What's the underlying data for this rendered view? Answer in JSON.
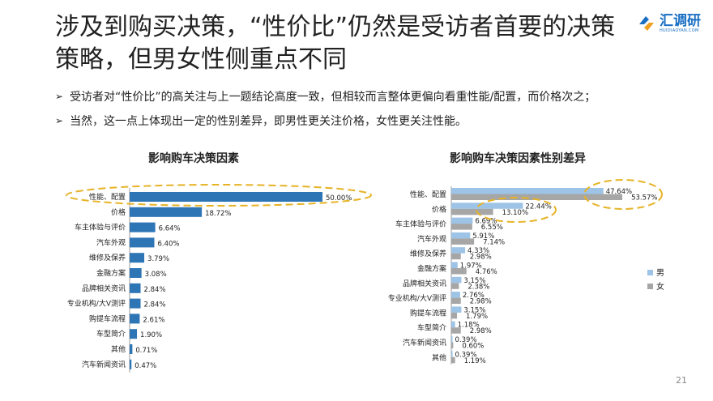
{
  "title": "涉及到购买决策，“性价比”仍然是受访者首要的决策策略，但男女性侧重点不同",
  "logo": {
    "cn": "汇调研",
    "en": "HUIDIAOYAN.COM"
  },
  "bullets": [
    "受访者对“性价比”的高关注与上一题结论高度一致，但相较而言整体更偏向看重性能/配置，而价格次之；",
    "当然，这一点上体现出一定的性别差异，即男性更关注价格，女性更关注性能。"
  ],
  "page_number": "21",
  "colors": {
    "left_bar": "#2e75b6",
    "male": "#9dc3e6",
    "female": "#a6a6a6",
    "highlight": "#e6b325"
  },
  "chart_data": [
    {
      "type": "bar",
      "orientation": "horizontal",
      "title": "影响购车决策因素",
      "categories": [
        "性能、配置",
        "价格",
        "车主体验与评价",
        "汽车外观",
        "维修及保养",
        "金融方案",
        "品牌相关资讯",
        "专业机构/大V测评",
        "购提车流程",
        "车型简介",
        "其他",
        "汽车新闻资讯"
      ],
      "values": [
        50.0,
        18.72,
        6.64,
        6.4,
        3.79,
        3.08,
        2.84,
        2.84,
        2.61,
        1.9,
        0.71,
        0.47
      ],
      "labels": [
        "50.00%",
        "18.72%",
        "6.64%",
        "6.40%",
        "3.79%",
        "3.08%",
        "2.84%",
        "2.84%",
        "2.61%",
        "1.90%",
        "0.71%",
        "0.47%"
      ],
      "highlighted": [
        "性能、配置"
      ]
    },
    {
      "type": "bar",
      "orientation": "horizontal",
      "title": "影响购车决策因素性别差异",
      "categories": [
        "性能、配置",
        "价格",
        "车主体验与评价",
        "汽车外观",
        "维修及保养",
        "金融方案",
        "品牌相关资讯",
        "专业机构/大V测评",
        "购提车流程",
        "车型简介",
        "汽车新闻资讯",
        "其他"
      ],
      "series": [
        {
          "name": "男",
          "values": [
            47.64,
            22.44,
            6.69,
            5.91,
            4.33,
            1.97,
            3.15,
            2.76,
            3.15,
            1.18,
            0.39,
            0.39
          ],
          "labels": [
            "47.64%",
            "22.44%",
            "6.69%",
            "5.91%",
            "4.33%",
            "1.97%",
            "3.15%",
            "2.76%",
            "3.15%",
            "1.18%",
            "0.39%",
            "0.39%"
          ]
        },
        {
          "name": "女",
          "values": [
            53.57,
            13.1,
            6.55,
            7.14,
            2.98,
            4.76,
            2.38,
            2.98,
            1.79,
            2.98,
            0.6,
            1.19
          ],
          "labels": [
            "53.57%",
            "13.10%",
            "6.55%",
            "7.14%",
            "2.98%",
            "4.76%",
            "2.38%",
            "2.98%",
            "1.79%",
            "2.98%",
            "0.60%",
            "1.19%"
          ]
        }
      ],
      "legend": "right",
      "highlighted": [
        "性能、配置",
        "价格"
      ]
    }
  ]
}
